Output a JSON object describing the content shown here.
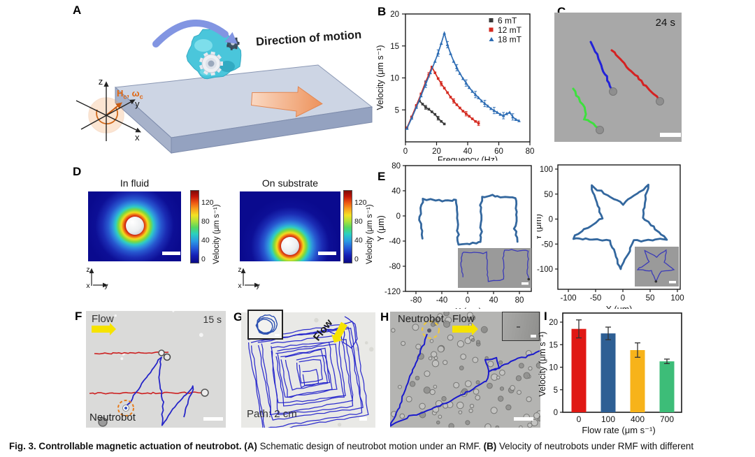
{
  "caption": {
    "segments": [
      {
        "text": "Fig. 3. Controllable magnetic actuation of neutrobot.",
        "bold": true
      },
      {
        "text": " ",
        "bold": false
      },
      {
        "text": "(A)",
        "bold": true
      },
      {
        "text": " Schematic design of neutrobot motion under an RMF. ",
        "bold": false
      },
      {
        "text": "(B)",
        "bold": true
      },
      {
        "text": " Velocity of neutrobots under RMF with different",
        "bold": false
      }
    ]
  },
  "panels": {
    "a": {
      "letter": "A",
      "direction_label": "Direction of motion",
      "h": "H",
      "h_sub": "c",
      "comma": ", ",
      "omega": "ω",
      "omega_sub": "c",
      "axis_x": "x",
      "axis_y": "y",
      "axis_z": "z"
    },
    "b": {
      "letter": "B"
    },
    "c": {
      "letter": "C",
      "time_label": "24 s",
      "trajectory_colors": {
        "blue": "#2222d8",
        "red": "#d42222",
        "green": "#3de03d"
      },
      "background": "#a8a8a8"
    },
    "d": {
      "letter": "D",
      "left_title": "In fluid",
      "right_title": "On substrate",
      "colorbar": {
        "label": "Velocity (μm s⁻¹)",
        "ticks": [
          120,
          80,
          40,
          0
        ]
      },
      "axes": {
        "z": "z",
        "x": "x",
        "y": "y"
      }
    },
    "e": {
      "letter": "E"
    },
    "f": {
      "letter": "F",
      "flow_label": "Flow",
      "time_label": "15 s",
      "robot_label": "Neutrobot",
      "red_line_color": "#cc2020",
      "blue_line_color": "#2525c8",
      "dashed_circle_color": "#e87a18",
      "red_lines": [
        [
          [
            12,
            61
          ],
          [
            118,
            59
          ]
        ],
        [
          [
            5,
            118
          ],
          [
            168,
            117
          ]
        ]
      ],
      "blue_path": [
        [
          57,
          139
        ],
        [
          80,
          104
        ],
        [
          107,
          67
        ],
        [
          105,
          100
        ],
        [
          110,
          131
        ],
        [
          109,
          163
        ],
        [
          130,
          133
        ],
        [
          154,
          108
        ],
        [
          145,
          133
        ],
        [
          140,
          152
        ]
      ]
    },
    "g": {
      "letter": "G",
      "flow_label": "Flow",
      "path_label": "Path: 2 cm",
      "path_color": "#2323cb",
      "tail_path": [
        [
          148,
          6
        ],
        [
          162,
          16
        ],
        [
          167,
          38
        ],
        [
          158,
          52
        ],
        [
          147,
          43
        ],
        [
          147,
          26
        ],
        [
          133,
          30
        ],
        [
          118,
          22
        ]
      ]
    },
    "h": {
      "letter": "H",
      "robot_label": "Neutrobot",
      "flow_label": "Flow",
      "path_color": "#1a1acc",
      "dashed_circle_color": "#eec83c",
      "path_main": [
        [
          53,
          32
        ],
        [
          46,
          50
        ],
        [
          38,
          70
        ],
        [
          29,
          92
        ],
        [
          21,
          112
        ],
        [
          14,
          133
        ],
        [
          7,
          150
        ],
        [
          0,
          164
        ]
      ],
      "path_branch": [
        [
          0,
          164
        ],
        [
          28,
          150
        ],
        [
          58,
          140
        ],
        [
          88,
          127
        ],
        [
          118,
          111
        ],
        [
          138,
          99
        ],
        [
          142,
          84
        ],
        [
          136,
          70
        ],
        [
          152,
          66
        ],
        [
          155,
          81
        ],
        [
          141,
          86
        ],
        [
          160,
          78
        ],
        [
          183,
          68
        ],
        [
          204,
          61
        ],
        [
          214,
          56
        ]
      ]
    },
    "i": {
      "letter": "I"
    },
    "flow_arrow_color": "#f6e300"
  },
  "chart_data": [
    {
      "id": "b",
      "type": "line",
      "xlabel": "Frequency (Hz)",
      "ylabel": "Velocity (μm s⁻¹)",
      "xlim": [
        0,
        80
      ],
      "ylim": [
        0,
        20
      ],
      "xticks": [
        0,
        20,
        40,
        60,
        80
      ],
      "yticks": [
        5,
        10,
        15,
        20
      ],
      "legend_position": "top-right",
      "grid": false,
      "series": [
        {
          "name": "6 mT",
          "color": "#3a3a3a",
          "marker": "square",
          "err": 0.3,
          "err_every": 4,
          "points": [
            [
              1,
              2.2
            ],
            [
              4,
              3.9
            ],
            [
              7,
              5.6
            ],
            [
              9,
              6.4
            ],
            [
              11,
              5.9
            ],
            [
              13,
              5.4
            ],
            [
              15,
              5.1
            ],
            [
              17,
              4.7
            ],
            [
              19,
              4.3
            ],
            [
              21,
              3.7
            ],
            [
              23,
              3.2
            ],
            [
              25,
              2.8
            ]
          ]
        },
        {
          "name": "12 mT",
          "color": "#d42a20",
          "marker": "square",
          "err": 0.35,
          "err_every": 4,
          "points": [
            [
              1,
              2.2
            ],
            [
              4,
              3.9
            ],
            [
              7,
              5.7
            ],
            [
              10,
              7.5
            ],
            [
              13,
              9.4
            ],
            [
              15,
              10.5
            ],
            [
              17,
              11.7
            ],
            [
              19,
              10.8
            ],
            [
              21,
              9.9
            ],
            [
              23,
              9.1
            ],
            [
              25,
              8.4
            ],
            [
              27,
              7.7
            ],
            [
              29,
              7.0
            ],
            [
              31,
              6.4
            ],
            [
              33,
              5.8
            ],
            [
              35,
              5.3
            ],
            [
              37,
              4.8
            ],
            [
              39,
              4.4
            ],
            [
              41,
              4.0
            ],
            [
              43,
              3.6
            ],
            [
              45,
              3.2
            ],
            [
              47,
              2.9
            ]
          ]
        },
        {
          "name": "18 mT",
          "color": "#2e6db4",
          "marker": "triangle",
          "err": 0.5,
          "err_every": 3,
          "points": [
            [
              1,
              2.1
            ],
            [
              4,
              3.7
            ],
            [
              7,
              5.4
            ],
            [
              10,
              7.2
            ],
            [
              13,
              9.0
            ],
            [
              16,
              10.8
            ],
            [
              19,
              12.6
            ],
            [
              21,
              13.9
            ],
            [
              23,
              15.4
            ],
            [
              25,
              17.0
            ],
            [
              27,
              15.2
            ],
            [
              29,
              13.8
            ],
            [
              31,
              12.6
            ],
            [
              33,
              11.6
            ],
            [
              35,
              10.7
            ],
            [
              37,
              9.9
            ],
            [
              39,
              9.2
            ],
            [
              41,
              8.5
            ],
            [
              43,
              7.9
            ],
            [
              45,
              7.4
            ],
            [
              47,
              6.9
            ],
            [
              49,
              6.4
            ],
            [
              51,
              6.0
            ],
            [
              53,
              5.6
            ],
            [
              55,
              5.2
            ],
            [
              57,
              4.9
            ],
            [
              59,
              4.6
            ],
            [
              61,
              4.3
            ],
            [
              63,
              4.1
            ],
            [
              65,
              4.4
            ],
            [
              67,
              4.6
            ],
            [
              69,
              3.9
            ],
            [
              71,
              3.5
            ],
            [
              73,
              3.3
            ]
          ]
        }
      ]
    },
    {
      "id": "e_left",
      "type": "line",
      "xlabel": "X (μm)",
      "ylabel": "Y (μm)",
      "xlim": [
        -96,
        98
      ],
      "ylim": [
        -120,
        80
      ],
      "xticks": [
        -80,
        -40,
        0,
        40,
        80
      ],
      "yticks": [
        80,
        40,
        0,
        -40,
        -80,
        -120
      ],
      "grid": false,
      "inset": true,
      "series": [
        {
          "name": "square-wave trajectory",
          "color": "#33679e",
          "points": [
            [
              -70,
              -36
            ],
            [
              -74,
              -8
            ],
            [
              -73,
              18
            ],
            [
              -68,
              27
            ],
            [
              -45,
              25
            ],
            [
              -25,
              23
            ],
            [
              -17,
              26
            ],
            [
              -16,
              -8
            ],
            [
              -15,
              -30
            ],
            [
              -14,
              -46
            ],
            [
              -2,
              -44
            ],
            [
              12,
              -43
            ],
            [
              20,
              -41
            ],
            [
              21,
              -12
            ],
            [
              20,
              12
            ],
            [
              22,
              30
            ],
            [
              38,
              32
            ],
            [
              52,
              29
            ],
            [
              65,
              31
            ],
            [
              75,
              29
            ],
            [
              76,
              2
            ],
            [
              73,
              -20
            ],
            [
              77,
              -41
            ]
          ]
        }
      ]
    },
    {
      "id": "e_right",
      "type": "line",
      "xlabel": "X (μm)",
      "ylabel": "Y (μm)",
      "xlim": [
        -119,
        105
      ],
      "ylim": [
        -140,
        110
      ],
      "xticks": [
        -100,
        -50,
        0,
        50,
        100
      ],
      "yticks": [
        100,
        50,
        0,
        -50,
        -100
      ],
      "grid": false,
      "inset": true,
      "series": [
        {
          "name": "star trajectory",
          "color": "#33679e",
          "closed": true,
          "points": [
            [
              -4,
              -100
            ],
            [
              -24,
              -44
            ],
            [
              -92,
              -38
            ],
            [
              -38,
              3
            ],
            [
              -58,
              66
            ],
            [
              0,
              30
            ],
            [
              46,
              68
            ],
            [
              36,
              3
            ],
            [
              80,
              -40
            ],
            [
              20,
              -44
            ]
          ]
        }
      ]
    },
    {
      "id": "i",
      "type": "bar",
      "xlabel": "Flow rate (μm s⁻¹)",
      "ylabel": "Velocity (μm s⁻¹)",
      "categories": [
        "0",
        "100",
        "400",
        "700"
      ],
      "values": [
        18.5,
        17.5,
        13.8,
        11.3
      ],
      "errors": [
        2.0,
        1.4,
        1.6,
        0.5
      ],
      "colors": [
        "#e01814",
        "#2e5f94",
        "#f7b31a",
        "#3dbd78"
      ],
      "ylim": [
        0,
        22
      ],
      "yticks": [
        0,
        5,
        10,
        15,
        20
      ],
      "grid": false
    }
  ]
}
